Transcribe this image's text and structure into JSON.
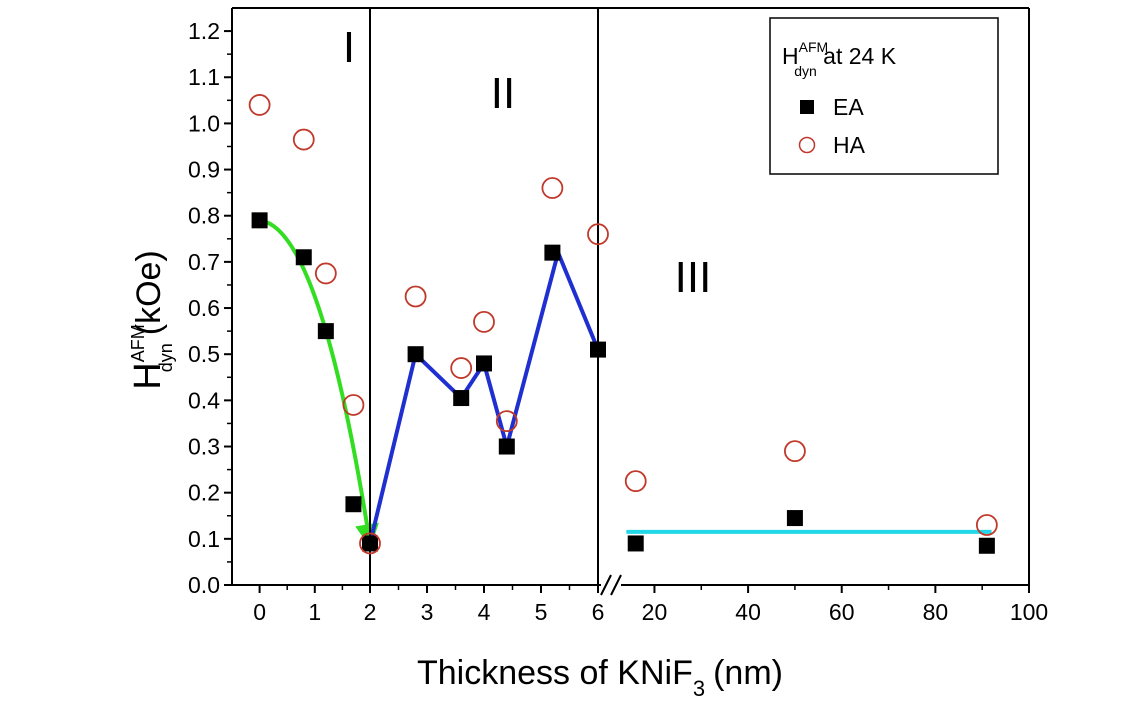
{
  "chart_data": {
    "type": "scatter",
    "xlabel": {
      "main": "Thickness of KNiF",
      "sub": "3",
      "unit": "(nm)"
    },
    "ylabel": {
      "base": "H",
      "sub": "dyn",
      "sup": "AFM",
      "unit": "(kOe)"
    },
    "ylim": [
      0,
      1.25
    ],
    "y_ticks": [
      "0.0",
      "0.1",
      "0.2",
      "0.3",
      "0.4",
      "0.5",
      "0.6",
      "0.7",
      "0.8",
      "0.9",
      "1.0",
      "1.1",
      "1.2"
    ],
    "x_axis_broken": true,
    "x_segments": [
      {
        "range": [
          -0.5,
          2
        ],
        "ticks": [
          "0",
          "1",
          "2"
        ]
      },
      {
        "range": [
          2,
          6
        ],
        "ticks": [
          "3",
          "4",
          "5",
          "6"
        ]
      },
      {
        "range": [
          12,
          100
        ],
        "ticks": [
          "20",
          "40",
          "60",
          "80",
          "100"
        ]
      }
    ],
    "region_labels": [
      "I",
      "II",
      "III"
    ],
    "legend": {
      "title": {
        "base": "H",
        "sub": "dyn",
        "sup": "AFM",
        "suffix": " at 24 K"
      },
      "position": "top-right"
    },
    "series": [
      {
        "name": "EA",
        "marker": "filled-square",
        "color": "#000000",
        "x": [
          0,
          0.8,
          1.2,
          1.7,
          2.0,
          2.8,
          3.6,
          4.0,
          4.4,
          5.2,
          6.0,
          16,
          50,
          91
        ],
        "y": [
          0.79,
          0.71,
          0.55,
          0.175,
          0.09,
          0.5,
          0.405,
          0.48,
          0.3,
          0.72,
          0.51,
          0.09,
          0.145,
          0.085
        ]
      },
      {
        "name": "HA",
        "marker": "open-circle",
        "color": "#c0392b",
        "x": [
          0,
          0.8,
          1.2,
          1.7,
          2.0,
          2.8,
          3.6,
          4.0,
          4.4,
          5.2,
          6.0,
          16,
          50,
          91
        ],
        "y": [
          1.04,
          0.965,
          0.675,
          0.39,
          0.09,
          0.625,
          0.47,
          0.57,
          0.355,
          0.86,
          0.76,
          0.225,
          0.29,
          0.13
        ]
      }
    ],
    "guide_lines": [
      {
        "kind": "arrow-curve",
        "color": "#33dd22",
        "x": [
          0,
          2.0
        ],
        "y": [
          0.79,
          0.09
        ]
      },
      {
        "kind": "polyline",
        "color": "#1f2fd0",
        "x": [
          2.0,
          2.8,
          3.6,
          4.0,
          4.4,
          5.3,
          6.0
        ],
        "y": [
          0.09,
          0.5,
          0.405,
          0.48,
          0.3,
          0.72,
          0.51
        ]
      },
      {
        "kind": "line",
        "color": "#22d8e8",
        "x": [
          14,
          92
        ],
        "y": [
          0.115,
          0.115
        ]
      }
    ]
  }
}
